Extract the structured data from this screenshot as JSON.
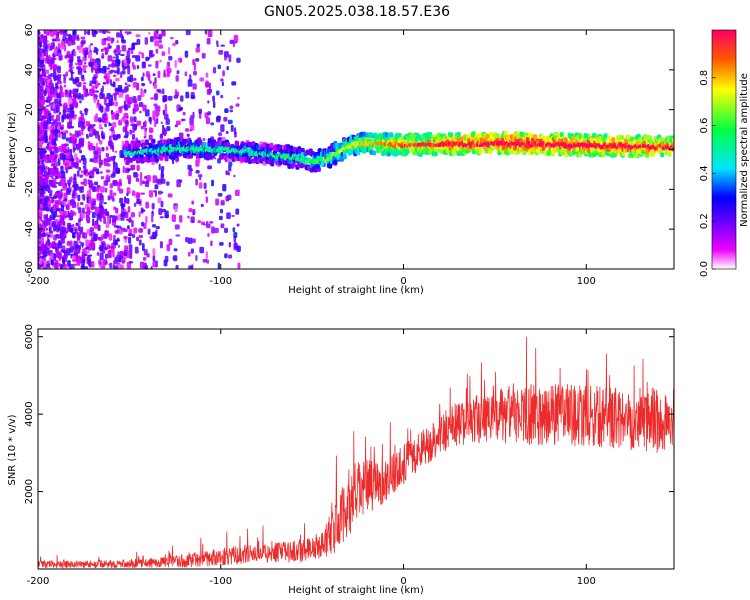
{
  "figure": {
    "title": "GN05.2025.038.18.57.E36"
  },
  "chart_data": [
    {
      "type": "heatmap",
      "xlabel": "Height of straight line (km)",
      "ylabel": "Frequency (Hz)",
      "xlim": [
        -200,
        148
      ],
      "ylim": [
        -60,
        60
      ],
      "x_ticks": [
        -200,
        -100,
        0,
        100
      ],
      "y_ticks": [
        -60,
        -40,
        -20,
        0,
        20,
        40,
        60
      ],
      "colorbar": {
        "label": "Normalized spectral amplitude",
        "range": [
          0,
          1
        ],
        "ticks": [
          "0.0",
          "0.2",
          "0.4",
          "0.6",
          "0.8"
        ],
        "colormap": [
          "#ffffff",
          "#ee00ff",
          "#6600ff",
          "#0000ff",
          "#00e5ff",
          "#00ff44",
          "#ffff00",
          "#ff0000"
        ]
      },
      "ridge_center_hz": [
        [
          -200,
          0
        ],
        [
          -150,
          -2
        ],
        [
          -140,
          -1
        ],
        [
          -120,
          0
        ],
        [
          -100,
          0
        ],
        [
          -80,
          -2
        ],
        [
          -60,
          -4
        ],
        [
          -50,
          -6
        ],
        [
          -42,
          -5
        ],
        [
          -35,
          -1
        ],
        [
          -28,
          2
        ],
        [
          -20,
          3
        ],
        [
          0,
          2
        ],
        [
          50,
          3
        ],
        [
          100,
          2
        ],
        [
          148,
          1
        ]
      ],
      "ridge_amplitude": [
        [
          -150,
          0.35
        ],
        [
          -120,
          0.45
        ],
        [
          -100,
          0.4
        ],
        [
          -80,
          0.4
        ],
        [
          -60,
          0.45
        ],
        [
          -45,
          0.5
        ],
        [
          -30,
          0.6
        ],
        [
          -10,
          0.75
        ],
        [
          20,
          0.85
        ],
        [
          60,
          0.95
        ],
        [
          100,
          0.9
        ],
        [
          148,
          0.85
        ]
      ],
      "grid": false,
      "legend": "colorbar-right"
    },
    {
      "type": "line",
      "xlabel": "Height of straight line (km)",
      "ylabel": "SNR (10 * v/v)",
      "xlim": [
        -200,
        148
      ],
      "ylim": [
        0,
        6200
      ],
      "x_ticks": [
        -200,
        -100,
        0,
        100
      ],
      "y_ticks": [
        2000,
        4000,
        6000
      ],
      "color": "#ee2b2b",
      "envelope_x": [
        -200,
        -150,
        -120,
        -100,
        -80,
        -60,
        -45,
        -35,
        -30,
        -25,
        -20,
        -10,
        0,
        10,
        20,
        30,
        40,
        50,
        60,
        80,
        100,
        120,
        148
      ],
      "envelope_mean": [
        120,
        130,
        200,
        320,
        400,
        450,
        600,
        1200,
        1700,
        2000,
        2100,
        2300,
        2700,
        3100,
        3500,
        3750,
        3850,
        3900,
        4000,
        4000,
        3950,
        3900,
        3800
      ],
      "envelope_spread": [
        120,
        130,
        200,
        300,
        300,
        350,
        450,
        900,
        1100,
        1000,
        900,
        700,
        650,
        600,
        700,
        750,
        800,
        900,
        1000,
        1000,
        1000,
        1000,
        1100
      ],
      "grid": false,
      "legend": "none"
    }
  ]
}
